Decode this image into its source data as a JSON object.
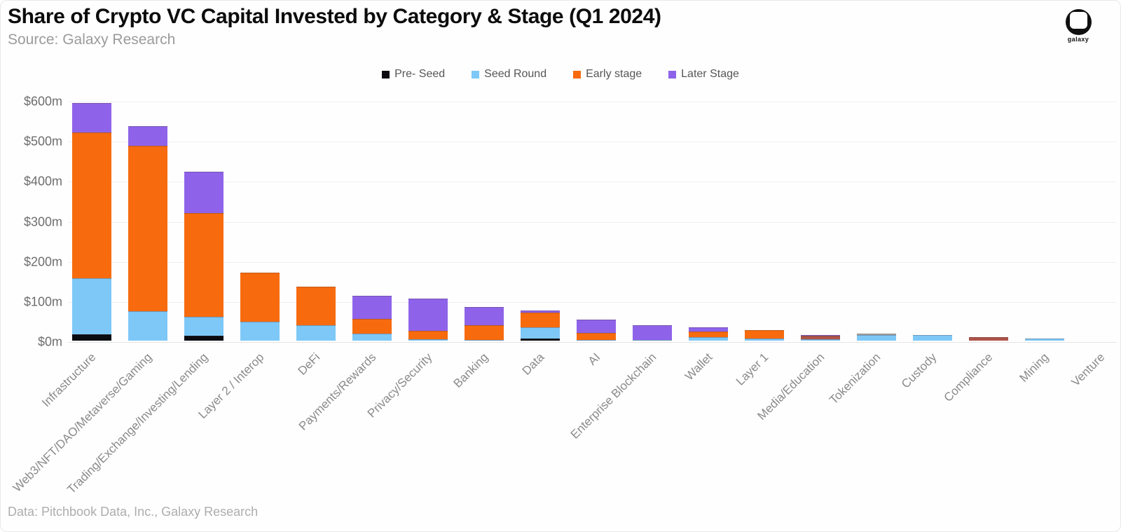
{
  "header": {
    "title": "Share of Crypto VC Capital Invested by Category & Stage (Q1 2024)",
    "source": "Source: Galaxy Research",
    "logo_text": "galaxy"
  },
  "footer": {
    "credit": "Data: Pitchbook Data, Inc., Galaxy Research"
  },
  "chart_data": {
    "type": "bar",
    "stacked": true,
    "title": "Share of Crypto VC Capital Invested by Category & Stage (Q1 2024)",
    "subtitle": "Source: Galaxy Research",
    "xlabel": "",
    "ylabel": "",
    "y_unit": "$m",
    "ylim": [
      0,
      600
    ],
    "y_ticks": [
      "$0m",
      "$100m",
      "$200m",
      "$300m",
      "$400m",
      "$500m",
      "$600m"
    ],
    "grid": "horizontal",
    "legend_position": "top-center",
    "categories": [
      "Infrastructure",
      "Web3/NFT/DAO/Metaverse/Gaming",
      "Trading/Exchange/Investing/Lending",
      "Layer 2 / Interop",
      "DeFi",
      "Payments/Rewards",
      "Privacy/Security",
      "Banking",
      "Data",
      "AI",
      "Enterprise Blockchain",
      "Wallet",
      "Layer 1",
      "Media/Education",
      "Tokenization",
      "Custody",
      "Compliance",
      "Mining",
      "Venture"
    ],
    "series": [
      {
        "name": "Pre- Seed",
        "color": "#0b0b12",
        "values": [
          15,
          0,
          13,
          0,
          0,
          0,
          0,
          0,
          5,
          0,
          0,
          0,
          0,
          0,
          0,
          0,
          0,
          0,
          0
        ]
      },
      {
        "name": "Seed Round",
        "color": "#7ec8f8",
        "values": [
          141,
          73,
          46,
          47,
          38,
          18,
          4,
          2,
          29,
          2,
          1,
          9,
          5,
          4,
          14,
          14,
          0,
          5,
          0
        ]
      },
      {
        "name": "Early stage",
        "color": "#f76b0e",
        "values": [
          363,
          414,
          259,
          123,
          97,
          36,
          21,
          37,
          36,
          17,
          1,
          14,
          21,
          8,
          0,
          0,
          9,
          0,
          0
        ]
      },
      {
        "name": "Later Stage",
        "color": "#8e63ea",
        "values": [
          74,
          48,
          103,
          0,
          0,
          58,
          80,
          45,
          5,
          34,
          37,
          10,
          0,
          2,
          3,
          0,
          0,
          0,
          0
        ]
      }
    ],
    "segment_color_overrides": [
      {
        "category": "Media/Education",
        "series": "Early stage",
        "color": "#ad5448"
      },
      {
        "category": "Compliance",
        "series": "Early stage",
        "color": "#ad5448"
      },
      {
        "category": "Tokenization",
        "series": "Later Stage",
        "color": "#a6a6a6"
      }
    ]
  }
}
